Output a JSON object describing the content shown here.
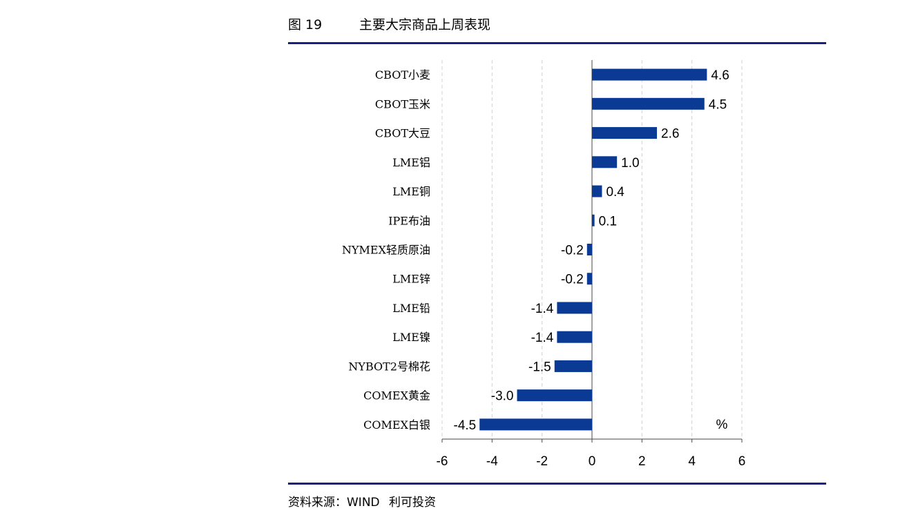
{
  "header": {
    "figure_number": "图 19",
    "title": "主要大宗商品上周表现"
  },
  "footer": {
    "source_label": "资料来源：WIND",
    "brand": "利可投资"
  },
  "colors": {
    "bar": "#0a3a94",
    "rule": "#1a1f86",
    "grid": "#d0d0d0"
  },
  "chart_data": {
    "type": "bar",
    "orientation": "horizontal",
    "categories": [
      "CBOT小麦",
      "CBOT玉米",
      "CBOT大豆",
      "LME铝",
      "LME铜",
      "IPE布油",
      "NYMEX轻质原油",
      "LME锌",
      "LME铅",
      "LME镍",
      "NYBOT2号棉花",
      "COMEX黄金",
      "COMEX白银"
    ],
    "values": [
      4.6,
      4.5,
      2.6,
      1.0,
      0.4,
      0.1,
      -0.2,
      -0.2,
      -1.4,
      -1.4,
      -1.5,
      -3.0,
      -4.5
    ],
    "data_labels": [
      "4.6",
      "4.5",
      "2.6",
      "1.0",
      "0.4",
      "0.1",
      "-0.2",
      "-0.2",
      "-1.4",
      "-1.4",
      "-1.5",
      "-3.0",
      "-4.5"
    ],
    "unit": "%",
    "xlim": [
      -6,
      6
    ],
    "xticks": [
      -6,
      -4,
      -2,
      0,
      2,
      4,
      6
    ],
    "grid": true,
    "title": "",
    "xlabel": "",
    "ylabel": ""
  }
}
